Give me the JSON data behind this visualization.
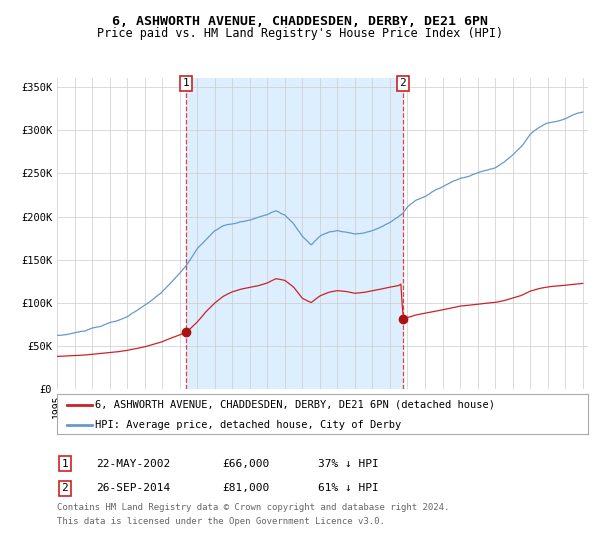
{
  "title1": "6, ASHWORTH AVENUE, CHADDESDEN, DERBY, DE21 6PN",
  "title2": "Price paid vs. HM Land Registry's House Price Index (HPI)",
  "ylim": [
    0,
    360000
  ],
  "yticks": [
    0,
    50000,
    100000,
    150000,
    200000,
    250000,
    300000,
    350000
  ],
  "ytick_labels": [
    "£0",
    "£50K",
    "£100K",
    "£150K",
    "£200K",
    "£250K",
    "£300K",
    "£350K"
  ],
  "bg_color": "#ffffff",
  "plot_bg_color": "#ffffff",
  "shaded_region_color": "#ddeeff",
  "grid_color": "#cccccc",
  "hpi_line_color": "#6699cc",
  "price_line_color": "#cc2222",
  "marker_color": "#aa1111",
  "dashed_line_color": "#dd4444",
  "annotation_box_color": "#ffffff",
  "annotation_box_edge": "#cc2222",
  "legend_label1": "6, ASHWORTH AVENUE, CHADDESDEN, DERBY, DE21 6PN (detached house)",
  "legend_label2": "HPI: Average price, detached house, City of Derby",
  "sale1_date": "22-MAY-2002",
  "sale1_year": 2002.38,
  "sale1_price": 66000,
  "sale1_text": "£66,000",
  "sale1_pct": "37% ↓ HPI",
  "sale2_date": "26-SEP-2014",
  "sale2_year": 2014.73,
  "sale2_price": 81000,
  "sale2_text": "£81,000",
  "sale2_pct": "61% ↓ HPI",
  "footnote1": "Contains HM Land Registry data © Crown copyright and database right 2024.",
  "footnote2": "This data is licensed under the Open Government Licence v3.0.",
  "title_fontsize": 9.5,
  "subtitle_fontsize": 8.5,
  "tick_fontsize": 7.5,
  "legend_fontsize": 7.5,
  "annotation_fontsize": 8,
  "footnote_fontsize": 6.5,
  "xlim_left": 1995.0,
  "xlim_right": 2025.3
}
